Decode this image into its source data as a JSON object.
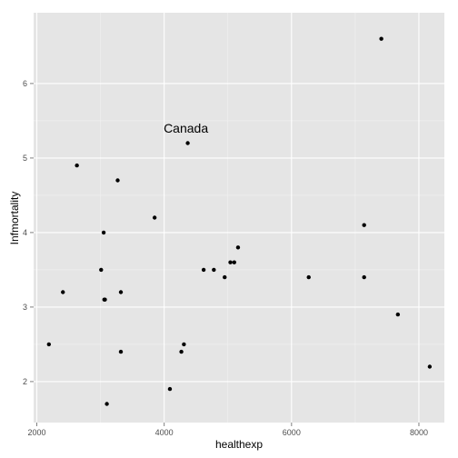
{
  "chart_data": {
    "type": "scatter",
    "xlabel": "healthexp",
    "ylabel": "Infmortality",
    "xlim": [
      1950,
      8400
    ],
    "ylim": [
      1.45,
      6.95
    ],
    "x_ticks": [
      2000,
      4000,
      6000,
      8000
    ],
    "x_tick_labels": [
      "2000",
      "4000",
      "6000",
      "8000"
    ],
    "y_ticks": [
      2,
      3,
      4,
      5,
      6
    ],
    "y_tick_labels": [
      "2",
      "3",
      "4",
      "5",
      "6"
    ],
    "grid": true,
    "colors": {
      "panel": "#e5e5e5",
      "grid_major": "#ffffff",
      "grid_minor": "#f2f2f2",
      "point": "#000000"
    },
    "annotations": [
      {
        "text": "Canada",
        "x": 4370,
        "y": 5.4
      }
    ],
    "points": [
      {
        "x": 7410,
        "y": 6.6
      },
      {
        "x": 4370,
        "y": 5.2
      },
      {
        "x": 2630,
        "y": 4.9
      },
      {
        "x": 3270,
        "y": 4.7
      },
      {
        "x": 3850,
        "y": 4.2
      },
      {
        "x": 7140,
        "y": 4.1
      },
      {
        "x": 3050,
        "y": 4.0
      },
      {
        "x": 5160,
        "y": 3.8
      },
      {
        "x": 5040,
        "y": 3.6
      },
      {
        "x": 5100,
        "y": 3.6
      },
      {
        "x": 3010,
        "y": 3.5
      },
      {
        "x": 4620,
        "y": 3.5
      },
      {
        "x": 4780,
        "y": 3.5
      },
      {
        "x": 4950,
        "y": 3.4
      },
      {
        "x": 6270,
        "y": 3.4
      },
      {
        "x": 7140,
        "y": 3.4
      },
      {
        "x": 2410,
        "y": 3.2
      },
      {
        "x": 3320,
        "y": 3.2
      },
      {
        "x": 3060,
        "y": 3.1
      },
      {
        "x": 3070,
        "y": 3.1
      },
      {
        "x": 7670,
        "y": 2.9
      },
      {
        "x": 2190,
        "y": 2.5
      },
      {
        "x": 4310,
        "y": 2.5
      },
      {
        "x": 3320,
        "y": 2.4
      },
      {
        "x": 4270,
        "y": 2.4
      },
      {
        "x": 8170,
        "y": 2.2
      },
      {
        "x": 4090,
        "y": 1.9
      },
      {
        "x": 3100,
        "y": 1.7
      }
    ]
  }
}
